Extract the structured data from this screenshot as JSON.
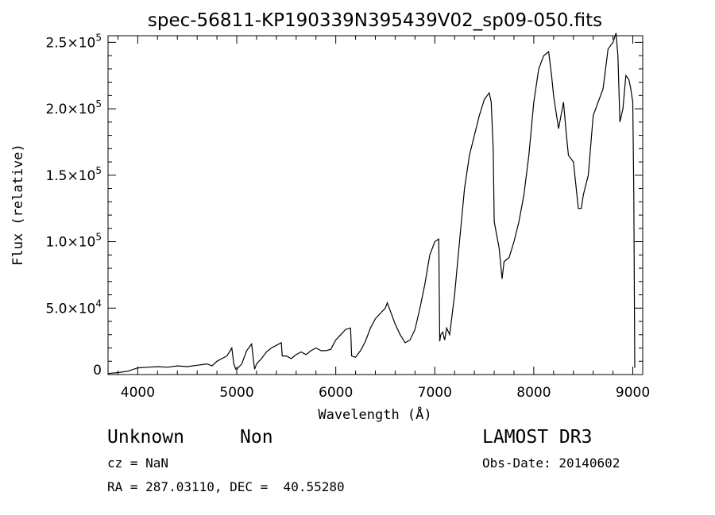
{
  "chart_data": {
    "type": "line",
    "title": "spec-56811-KP190339N395439V02_sp09-050.fits",
    "xlabel": "Wavelength (Å)",
    "ylabel": "Flux (relative)",
    "xlim": [
      3700,
      9100
    ],
    "ylim": [
      0,
      255000
    ],
    "x_ticks": [
      {
        "value": 4000,
        "label": "4000"
      },
      {
        "value": 5000,
        "label": "5000"
      },
      {
        "value": 6000,
        "label": "6000"
      },
      {
        "value": 7000,
        "label": "7000"
      },
      {
        "value": 8000,
        "label": "8000"
      },
      {
        "value": 9000,
        "label": "9000"
      }
    ],
    "y_ticks": [
      {
        "value": 0,
        "mantissa": "0",
        "exp": ""
      },
      {
        "value": 50000,
        "mantissa": "5.0×10",
        "exp": "4"
      },
      {
        "value": 100000,
        "mantissa": "1.0×10",
        "exp": "5"
      },
      {
        "value": 150000,
        "mantissa": "1.5×10",
        "exp": "5"
      },
      {
        "value": 200000,
        "mantissa": "2.0×10",
        "exp": "5"
      },
      {
        "value": 250000,
        "mantissa": "2.5×10",
        "exp": "5"
      }
    ],
    "grid": false,
    "series": [
      {
        "x": [
          3700,
          3800,
          3900,
          4000,
          4100,
          4200,
          4300,
          4400,
          4500,
          4600,
          4700,
          4750,
          4800,
          4850,
          4900,
          4950,
          4970,
          4990,
          5000,
          5050,
          5100,
          5150,
          5170,
          5180,
          5200,
          5250,
          5300,
          5350,
          5400,
          5450,
          5460,
          5500,
          5550,
          5600,
          5650,
          5700,
          5750,
          5800,
          5850,
          5900,
          5950,
          6000,
          6050,
          6100,
          6150,
          6160,
          6200,
          6250,
          6300,
          6350,
          6400,
          6450,
          6500,
          6520,
          6550,
          6600,
          6650,
          6700,
          6750,
          6800,
          6850,
          6900,
          6950,
          7000,
          7020,
          7040,
          7050,
          7060,
          7080,
          7100,
          7120,
          7150,
          7200,
          7250,
          7300,
          7350,
          7400,
          7450,
          7500,
          7550,
          7570,
          7590,
          7600,
          7650,
          7680,
          7700,
          7750,
          7800,
          7850,
          7900,
          7950,
          8000,
          8050,
          8100,
          8150,
          8180,
          8200,
          8250,
          8300,
          8330,
          8350,
          8400,
          8450,
          8480,
          8500,
          8550,
          8600,
          8650,
          8700,
          8750,
          8800,
          8830,
          8850,
          8870,
          8900,
          8930,
          8960,
          8980,
          9000,
          9010,
          9020
        ],
        "y": [
          800,
          1500,
          2500,
          5000,
          5500,
          6000,
          5500,
          6500,
          6000,
          7000,
          8000,
          6500,
          10000,
          12000,
          14000,
          20000,
          8000,
          4000,
          4000,
          8000,
          18000,
          23000,
          10000,
          4000,
          8000,
          12000,
          17000,
          20000,
          22000,
          24000,
          14000,
          14000,
          12000,
          15000,
          17000,
          15000,
          18000,
          20000,
          18000,
          18000,
          19000,
          26000,
          30000,
          34000,
          35000,
          14000,
          13000,
          18000,
          25000,
          35000,
          42000,
          46000,
          50000,
          54000,
          48000,
          38000,
          30000,
          24000,
          26000,
          34000,
          50000,
          68000,
          90000,
          100000,
          101000,
          102000,
          25000,
          30000,
          32000,
          26000,
          35000,
          30000,
          60000,
          100000,
          140000,
          165000,
          180000,
          195000,
          207000,
          212000,
          205000,
          170000,
          115000,
          95000,
          72000,
          85000,
          88000,
          100000,
          115000,
          135000,
          165000,
          205000,
          230000,
          240000,
          243000,
          225000,
          210000,
          185000,
          205000,
          180000,
          165000,
          160000,
          125000,
          125000,
          135000,
          150000,
          195000,
          205000,
          215000,
          245000,
          250000,
          257000,
          240000,
          190000,
          200000,
          225000,
          222000,
          215000,
          205000,
          135000,
          5000
        ]
      }
    ]
  },
  "info": {
    "object_class": "Unknown",
    "object_subclass": "Non",
    "cz": "cz = NaN",
    "coords": "RA = 287.03110, DEC =  40.55280",
    "survey": "LAMOST DR3",
    "obs_date": "Obs-Date: 20140602"
  }
}
